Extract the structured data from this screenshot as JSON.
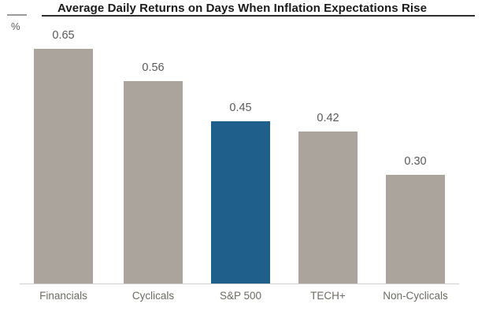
{
  "chart": {
    "title": "Average Daily Returns on Days When Inflation Expectations Rise",
    "y_axis_unit": "%"
  },
  "colors": {
    "bar_default": "#aba49c",
    "bar_highlight": "#1f5f8c",
    "title_text": "#1a1a1a",
    "value_label_text": "#595959",
    "category_label_text": "#6e6a65",
    "axis_line": "#cfcfcf",
    "title_rule": "#2e2e2e"
  },
  "chart_data": {
    "type": "bar",
    "title": "Average Daily Returns on Days When Inflation Expectations Rise",
    "xlabel": "",
    "ylabel": "%",
    "categories": [
      "Financials",
      "Cyclicals",
      "S&P 500",
      "TECH+",
      "Non-Cyclicals"
    ],
    "values": [
      0.65,
      0.56,
      0.45,
      0.42,
      0.3
    ],
    "value_labels": [
      "0.65",
      "0.56",
      "0.45",
      "0.42",
      "0.30"
    ],
    "highlighted_category": "S&P 500",
    "ylim": [
      0,
      0.72
    ],
    "grid": false,
    "legend": "none",
    "data_labels_shown": true,
    "y_axis_ticks_shown": false
  }
}
